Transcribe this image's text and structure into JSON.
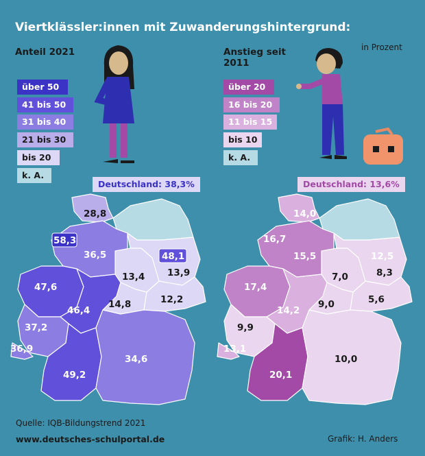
{
  "title": "Viertklässler:innen mit Zuwanderungshintergrund:",
  "left_panel": {
    "heading": "Anteil 2021",
    "national_label": "Deutschland: 38,3%",
    "legend": [
      {
        "label": "über 50",
        "color": "#3b32c6",
        "text_color": "#ffffff"
      },
      {
        "label": "41 bis 50",
        "color": "#6151da",
        "text_color": "#ffffff"
      },
      {
        "label": "31 bis 40",
        "color": "#8b7de1",
        "text_color": "#ffffff"
      },
      {
        "label": "21 bis 30",
        "color": "#b9aeea",
        "text_color": "#1a1a1a"
      },
      {
        "label": "bis 20",
        "color": "#ddd8f5",
        "text_color": "#1a1a1a"
      },
      {
        "label": "k. A.",
        "color": "#b7dbe5",
        "text_color": "#1a1a1a"
      }
    ]
  },
  "right_panel": {
    "heading_line1": "Anstieg seit",
    "heading_line2": "2011",
    "unit": "in Prozent",
    "national_label": "Deutschland: 13,6%",
    "legend": [
      {
        "label": "über 20",
        "color": "#a24aa5",
        "text_color": "#ffffff"
      },
      {
        "label": "16 bis 20",
        "color": "#c083c8",
        "text_color": "#ffffff"
      },
      {
        "label": "11 bis 15",
        "color": "#dab0de",
        "text_color": "#ffffff"
      },
      {
        "label": "bis 10",
        "color": "#ead6ee",
        "text_color": "#1a1a1a"
      },
      {
        "label": "k. A.",
        "color": "#b7dbe5",
        "text_color": "#1a1a1a"
      }
    ]
  },
  "states_share_2021": {
    "schleswig_holstein": "28,8",
    "hamburg": "58,3",
    "bremen": "58,3",
    "niedersachsen": "36,5",
    "berlin": "48,1",
    "brandenburg": "13,9",
    "sachsen_anhalt": "13,4",
    "nordrhein_westfalen": "47,6",
    "hessen": "46,4",
    "thueringen": "14,8",
    "sachsen": "12,2",
    "rheinland_pfalz": "37,2",
    "saarland": "36,9",
    "baden_wuerttemberg": "49,2",
    "bayern": "34,6",
    "mecklenburg_vorpommern": "k. A."
  },
  "states_increase_2011": {
    "schleswig_holstein": "14,0",
    "bremen": "16,7",
    "niedersachsen": "15,5",
    "berlin": "12,5",
    "brandenburg": "8,3",
    "sachsen_anhalt": "7,0",
    "nordrhein_westfalen": "17,4",
    "hessen": "14,2",
    "thueringen": "9,0",
    "sachsen": "5,6",
    "rheinland_pfalz": "9,9",
    "saarland": "13,1",
    "baden_wuerttemberg": "20,1",
    "bayern": "10,0",
    "mecklenburg_vorpommern": "k. A."
  },
  "footer": {
    "source": "Quelle: IQB-Bildungstrend 2021",
    "website": "www.deutsches-schulportal.de",
    "credit": "Grafik: H. Anders"
  }
}
